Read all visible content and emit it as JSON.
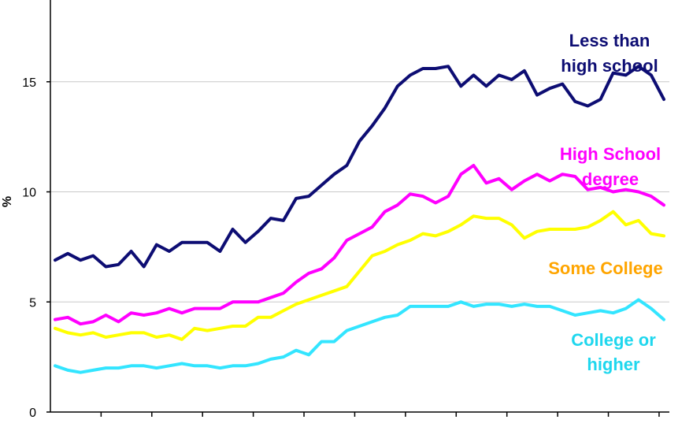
{
  "chart_data": {
    "type": "line",
    "title": "",
    "xlabel": "",
    "ylabel": "%",
    "ylim": [
      0,
      19
    ],
    "yticks": [
      0,
      5,
      10,
      15
    ],
    "grid": "horizontal",
    "legend": "inline labels at right",
    "x_start_period": 1,
    "series": [
      {
        "name_lines": [
          "Less than",
          "high school"
        ],
        "color": "#0d0d73",
        "values": [
          6.9,
          7.2,
          6.9,
          7.1,
          6.6,
          6.7,
          7.3,
          6.6,
          7.6,
          7.3,
          7.7,
          7.7,
          7.7,
          7.3,
          8.3,
          7.7,
          8.2,
          8.8,
          8.7,
          9.7,
          9.8,
          10.3,
          10.8,
          11.2,
          12.3,
          13.0,
          13.8,
          14.8,
          15.3,
          15.6,
          15.6,
          15.7,
          14.8,
          15.3,
          14.8,
          15.3,
          15.1,
          15.5,
          14.4,
          14.7,
          14.9,
          14.1,
          13.9,
          14.2,
          15.4,
          15.3,
          15.7,
          15.3,
          14.2
        ]
      },
      {
        "name_lines": [
          "High School",
          "degree"
        ],
        "color": "#ff00ff",
        "values": [
          4.2,
          4.3,
          4.0,
          4.1,
          4.4,
          4.1,
          4.5,
          4.4,
          4.5,
          4.7,
          4.5,
          4.7,
          4.7,
          4.7,
          5.0,
          5.0,
          5.0,
          5.2,
          5.4,
          5.9,
          6.3,
          6.5,
          7.0,
          7.8,
          8.1,
          8.4,
          9.1,
          9.4,
          9.9,
          9.8,
          9.5,
          9.8,
          10.8,
          11.2,
          10.4,
          10.6,
          10.1,
          10.5,
          10.8,
          10.5,
          10.8,
          10.7,
          10.1,
          10.2,
          10.0,
          10.1,
          10.0,
          9.8,
          9.4
        ]
      },
      {
        "name_lines": [
          "Some College"
        ],
        "color": "#ffff00",
        "label_color": "#ffa500",
        "values": [
          3.8,
          3.6,
          3.5,
          3.6,
          3.4,
          3.5,
          3.6,
          3.6,
          3.4,
          3.5,
          3.3,
          3.8,
          3.7,
          3.8,
          3.9,
          3.9,
          4.3,
          4.3,
          4.6,
          4.9,
          5.1,
          5.3,
          5.5,
          5.7,
          6.4,
          7.1,
          7.3,
          7.6,
          7.8,
          8.1,
          8.0,
          8.2,
          8.5,
          8.9,
          8.8,
          8.8,
          8.5,
          7.9,
          8.2,
          8.3,
          8.3,
          8.3,
          8.4,
          8.7,
          9.1,
          8.5,
          8.7,
          8.1,
          8.0
        ]
      },
      {
        "name_lines": [
          "College or",
          "higher"
        ],
        "color": "#33e5ff",
        "label_color": "#1fd7ee",
        "values": [
          2.1,
          1.9,
          1.8,
          1.9,
          2.0,
          2.0,
          2.1,
          2.1,
          2.0,
          2.1,
          2.2,
          2.1,
          2.1,
          2.0,
          2.1,
          2.1,
          2.2,
          2.4,
          2.5,
          2.8,
          2.6,
          3.2,
          3.2,
          3.7,
          3.9,
          4.1,
          4.3,
          4.4,
          4.8,
          4.8,
          4.8,
          4.8,
          5.0,
          4.8,
          4.9,
          4.9,
          4.8,
          4.9,
          4.8,
          4.8,
          4.6,
          4.4,
          4.5,
          4.6,
          4.5,
          4.7,
          5.1,
          4.7,
          4.2
        ]
      }
    ]
  },
  "axis": {
    "ylabel": "%",
    "ytick_labels": [
      "0",
      "5",
      "10",
      "15"
    ]
  },
  "labels": {
    "less_than_hs_line1": "Less than",
    "less_than_hs_line2": "high school",
    "hs_degree_line1": "High School",
    "hs_degree_line2": "degree",
    "some_college": "Some College",
    "college_line1": "College or",
    "college_line2": "higher"
  }
}
